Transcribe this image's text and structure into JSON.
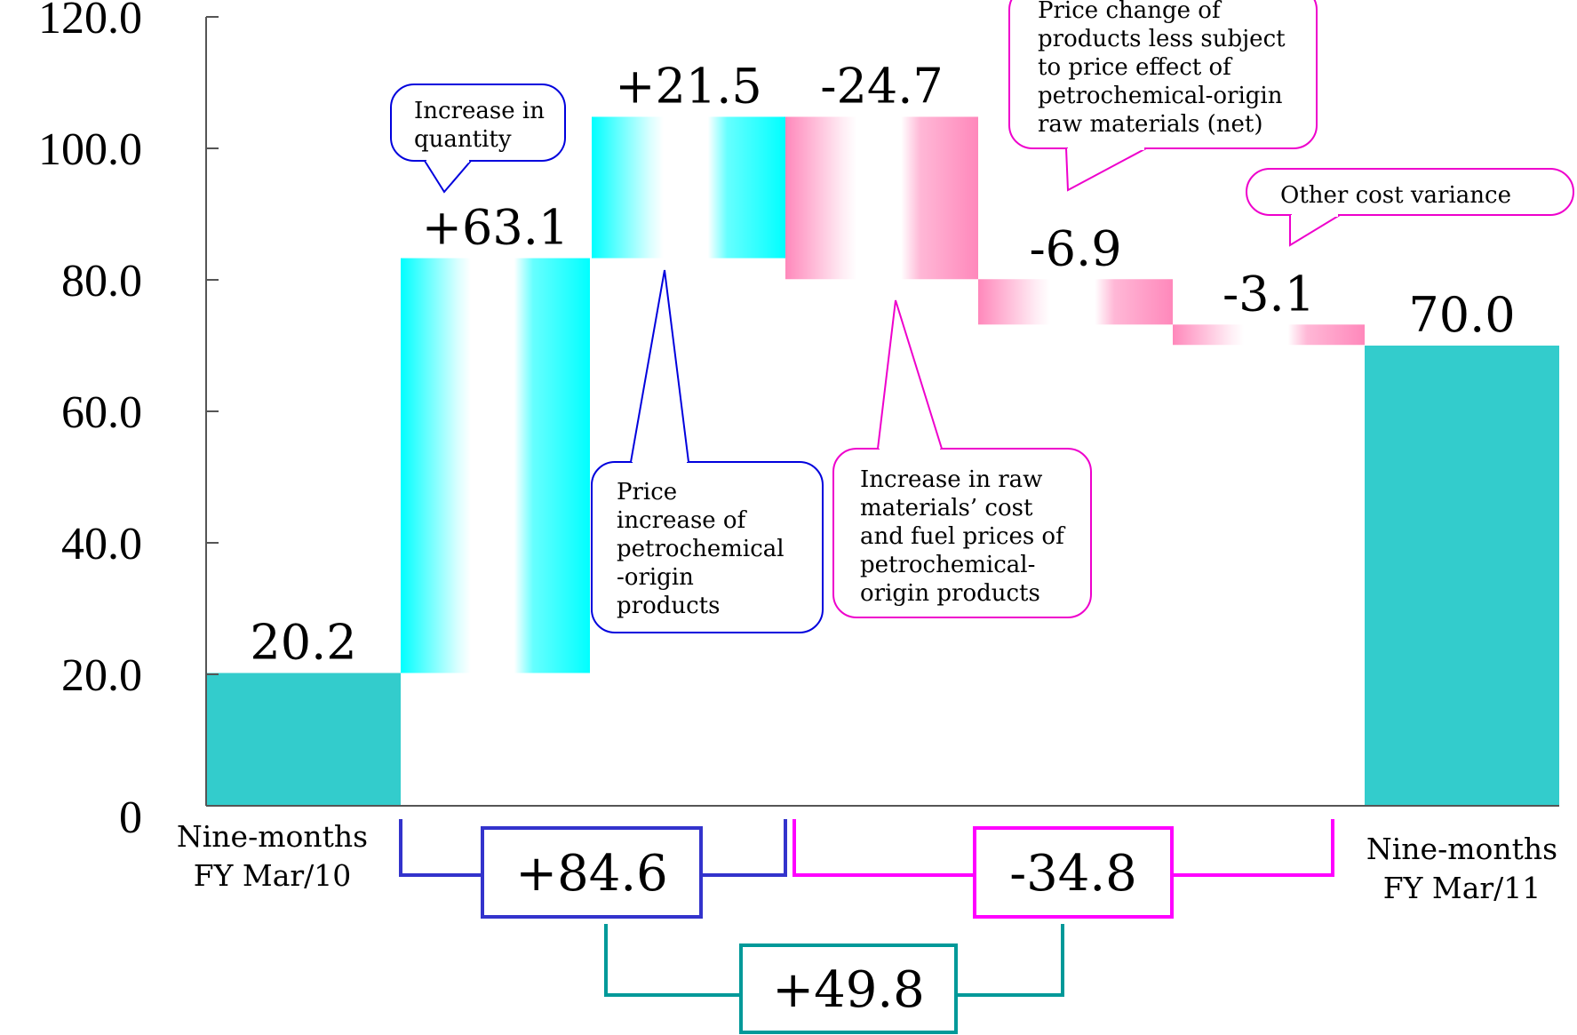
{
  "chart_data": {
    "type": "bar",
    "subtype": "waterfall",
    "ylim": [
      0,
      120
    ],
    "yticks": [
      {
        "value": 0,
        "label": "0"
      },
      {
        "value": 20,
        "label": "20.0"
      },
      {
        "value": 40,
        "label": "40.0"
      },
      {
        "value": 60,
        "label": "60.0"
      },
      {
        "value": 80,
        "label": "80.0"
      },
      {
        "value": 100,
        "label": "100.0"
      },
      {
        "value": 120,
        "label": "120.0"
      }
    ],
    "grid": false,
    "steps": [
      {
        "kind": "total",
        "base": 0,
        "top": 20.2,
        "label": "20.2",
        "color": "#33cccc",
        "category": [
          "Nine-months",
          "FY Mar/10"
        ]
      },
      {
        "kind": "increase",
        "base": 20.2,
        "top": 83.3,
        "label": "+63.1",
        "color": "#00ffff"
      },
      {
        "kind": "increase",
        "base": 83.3,
        "top": 104.8,
        "label": "+21.5",
        "color": "#00ffff"
      },
      {
        "kind": "decrease",
        "base": 80.1,
        "top": 104.8,
        "label": "-24.7",
        "color": "#ff88bb"
      },
      {
        "kind": "decrease",
        "base": 73.2,
        "top": 80.1,
        "label": "-6.9",
        "color": "#ff88bb"
      },
      {
        "kind": "decrease",
        "base": 70.1,
        "top": 73.2,
        "label": "-3.1",
        "color": "#ff88bb"
      },
      {
        "kind": "total",
        "base": 0,
        "top": 70.0,
        "label": "70.0",
        "color": "#33cccc",
        "category": [
          "Nine-months",
          "FY Mar/11"
        ]
      }
    ],
    "annotations": [
      {
        "step": 1,
        "color": "#0000dd",
        "lines": [
          "Increase in",
          "quantity"
        ]
      },
      {
        "step": 2,
        "color": "#0000dd",
        "lines": [
          "Price",
          "increase of",
          "petrochemical",
          "-origin",
          "products"
        ]
      },
      {
        "step": 3,
        "color": "#ee00cc",
        "lines": [
          "Increase in raw",
          "materials’ cost",
          "and fuel prices of",
          "petrochemical-",
          "origin products"
        ]
      },
      {
        "step": 4,
        "color": "#ee00cc",
        "lines": [
          "Price change of",
          "products less subject",
          "to price effect of",
          "petrochemical-origin",
          "raw materials (net)"
        ]
      },
      {
        "step": 5,
        "color": "#ee00cc",
        "lines": [
          "Other cost variance"
        ]
      }
    ],
    "summaries": [
      {
        "label": "+84.6",
        "color": "#3333cc",
        "spans": [
          1,
          2
        ]
      },
      {
        "label": "-34.8",
        "color": "#ff00ff",
        "spans": [
          3,
          5
        ]
      },
      {
        "label": "+49.8",
        "color": "#009999",
        "spans": [
          1,
          5
        ]
      }
    ]
  }
}
